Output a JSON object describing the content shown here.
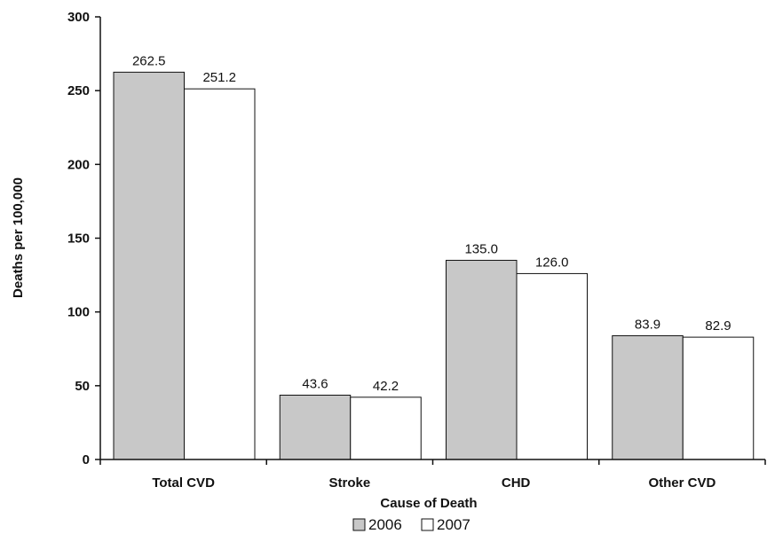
{
  "chart_data": {
    "type": "bar",
    "categories": [
      "Total CVD",
      "Stroke",
      "CHD",
      "Other CVD"
    ],
    "series": [
      {
        "name": "2006",
        "values": [
          262.5,
          43.6,
          135.0,
          83.9
        ],
        "labels": [
          "262.5",
          "43.6",
          "135.0",
          "83.9"
        ],
        "color": "#c8c8c8"
      },
      {
        "name": "2007",
        "values": [
          251.2,
          42.2,
          126.0,
          82.9
        ],
        "labels": [
          "251.2",
          "42.2",
          "126.0",
          "82.9"
        ],
        "color": "#ffffff"
      }
    ],
    "xlabel": "Cause of Death",
    "ylabel": "Deaths per 100,000",
    "ylim": [
      0,
      300
    ],
    "yticks": [
      0,
      50,
      100,
      150,
      200,
      250,
      300
    ],
    "ytick_labels": [
      "0",
      "50",
      "100",
      "150",
      "200",
      "250",
      "300"
    ],
    "grid": false,
    "legend_position": "bottom-center"
  }
}
